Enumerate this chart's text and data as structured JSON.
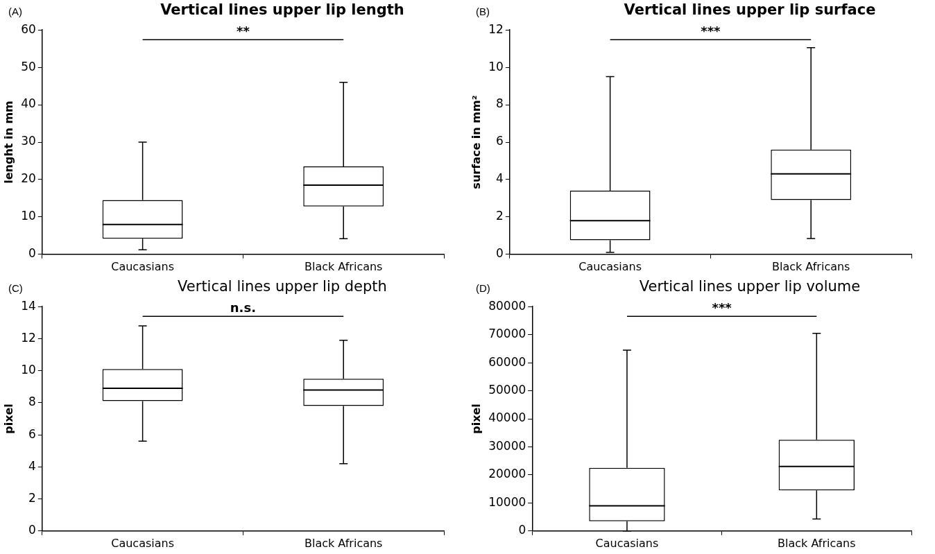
{
  "chart_data": [
    {
      "type": "box",
      "title": "Vertical lines upper lip length",
      "ylabel": "lenght in mm",
      "categories": [
        "Caucasians",
        "Black Africans"
      ],
      "ylim": [
        0,
        60
      ],
      "yticks": [
        0,
        10,
        20,
        30,
        40,
        50,
        60
      ],
      "annotations": [
        "(A)",
        "**"
      ],
      "boxes": [
        {
          "low": 1.2,
          "q1": 4.2,
          "median": 8,
          "q3": 14.5,
          "high": 30
        },
        {
          "low": 4.2,
          "q1": 12.8,
          "median": 18.5,
          "q3": 23.5,
          "high": 46
        }
      ]
    },
    {
      "type": "box",
      "title": "Vertical lines upper lip surface",
      "ylabel": "surface in mm²",
      "categories": [
        "Caucasians",
        "Black Africans"
      ],
      "ylim": [
        0,
        12
      ],
      "yticks": [
        0,
        2,
        4,
        6,
        8,
        10,
        12
      ],
      "annotations": [
        "(B)",
        "***"
      ],
      "boxes": [
        {
          "low": 0.1,
          "q1": 0.75,
          "median": 1.8,
          "q3": 3.4,
          "high": 9.5
        },
        {
          "low": 0.85,
          "q1": 2.9,
          "median": 4.3,
          "q3": 5.6,
          "high": 11.05
        }
      ]
    },
    {
      "type": "box",
      "title": "Vertical lines upper lip depth",
      "ylabel": "pixel",
      "categories": [
        "Caucasians",
        "Black Africans"
      ],
      "ylim": [
        0,
        14
      ],
      "yticks": [
        0,
        2,
        4,
        6,
        8,
        10,
        12,
        14
      ],
      "annotations": [
        "(C)",
        "n.s."
      ],
      "boxes": [
        {
          "low": 5.6,
          "q1": 8.1,
          "median": 8.9,
          "q3": 10.1,
          "high": 12.8
        },
        {
          "low": 4.2,
          "q1": 7.8,
          "median": 8.8,
          "q3": 9.5,
          "high": 11.9
        }
      ]
    },
    {
      "type": "box",
      "title": "Vertical lines upper lip volume",
      "ylabel": "pixel",
      "categories": [
        "Caucasians",
        "Black Africans"
      ],
      "ylim": [
        0,
        80000
      ],
      "yticks": [
        0,
        10000,
        20000,
        30000,
        40000,
        50000,
        60000,
        70000,
        80000
      ],
      "annotations": [
        "(D)",
        "***"
      ],
      "boxes": [
        {
          "low": 0,
          "q1": 3500,
          "median": 9000,
          "q3": 22500,
          "high": 64500
        },
        {
          "low": 4300,
          "q1": 14500,
          "median": 23000,
          "q3": 32500,
          "high": 70500
        }
      ]
    }
  ]
}
